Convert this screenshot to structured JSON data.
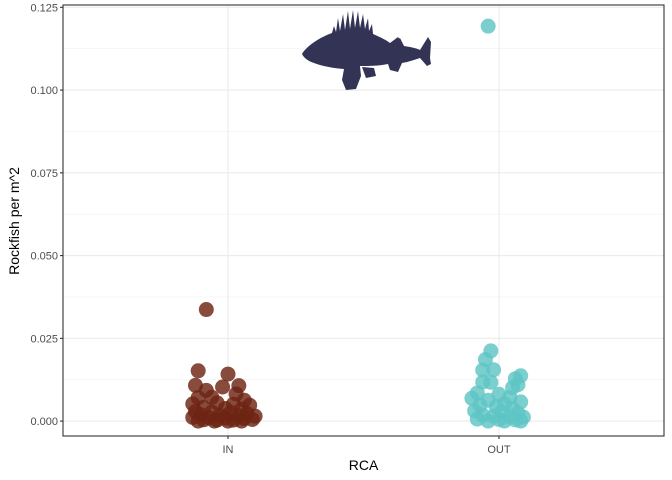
{
  "chart_data": {
    "type": "scatter",
    "title": "",
    "xlabel": "RCA",
    "ylabel": "Rockfish per m^2",
    "categories": [
      "IN",
      "OUT"
    ],
    "ylim": [
      -0.0045,
      0.1257
    ],
    "yticks": [
      0.0,
      0.025,
      0.05,
      0.075,
      0.1,
      0.125
    ],
    "ytick_labels": [
      "0.000",
      "0.025",
      "0.050",
      "0.075",
      "0.100",
      "0.125"
    ],
    "grid": true,
    "legend": "none",
    "series": [
      {
        "category": "IN",
        "color": "#6e2414",
        "points": [
          {
            "x": -0.08,
            "y": 0.0337
          },
          {
            "x": -0.11,
            "y": 0.0152
          },
          {
            "x": 0.0,
            "y": 0.0142
          },
          {
            "x": -0.12,
            "y": 0.0108
          },
          {
            "x": -0.02,
            "y": 0.0103
          },
          {
            "x": 0.04,
            "y": 0.0107
          },
          {
            "x": -0.08,
            "y": 0.0093
          },
          {
            "x": 0.03,
            "y": 0.0082
          },
          {
            "x": -0.11,
            "y": 0.0071
          },
          {
            "x": -0.06,
            "y": 0.0072
          },
          {
            "x": 0.06,
            "y": 0.0063
          },
          {
            "x": -0.13,
            "y": 0.0052
          },
          {
            "x": -0.04,
            "y": 0.0055
          },
          {
            "x": 0.02,
            "y": 0.0051
          },
          {
            "x": 0.08,
            "y": 0.0048
          },
          {
            "x": -0.09,
            "y": 0.0041
          },
          {
            "x": -0.01,
            "y": 0.0038
          },
          {
            "x": 0.05,
            "y": 0.0036
          },
          {
            "x": -0.12,
            "y": 0.0029
          },
          {
            "x": -0.06,
            "y": 0.0027
          },
          {
            "x": 0.01,
            "y": 0.0026
          },
          {
            "x": 0.07,
            "y": 0.0023
          },
          {
            "x": -0.1,
            "y": 0.0019
          },
          {
            "x": -0.03,
            "y": 0.0017
          },
          {
            "x": 0.04,
            "y": 0.0016
          },
          {
            "x": 0.1,
            "y": 0.0015
          },
          {
            "x": -0.13,
            "y": 0.0011
          },
          {
            "x": -0.07,
            "y": 0.001
          },
          {
            "x": -0.01,
            "y": 0.0009
          },
          {
            "x": 0.06,
            "y": 0.0008
          },
          {
            "x": -0.09,
            "y": 0.0004
          },
          {
            "x": -0.04,
            "y": 0.0003
          },
          {
            "x": 0.02,
            "y": 0.0003
          },
          {
            "x": 0.09,
            "y": 0.0005
          },
          {
            "x": -0.11,
            "y": 0.0
          },
          {
            "x": -0.05,
            "y": 0.0
          },
          {
            "x": 0.0,
            "y": 0.0
          },
          {
            "x": 0.05,
            "y": 0.0
          }
        ]
      },
      {
        "category": "OUT",
        "color": "#5ec4c4",
        "points": [
          {
            "x": -0.04,
            "y": 0.1193
          },
          {
            "x": -0.03,
            "y": 0.0212
          },
          {
            "x": -0.05,
            "y": 0.0186
          },
          {
            "x": -0.02,
            "y": 0.0155
          },
          {
            "x": -0.06,
            "y": 0.0154
          },
          {
            "x": 0.08,
            "y": 0.0137
          },
          {
            "x": 0.06,
            "y": 0.0128
          },
          {
            "x": -0.06,
            "y": 0.0118
          },
          {
            "x": -0.03,
            "y": 0.0117
          },
          {
            "x": 0.07,
            "y": 0.011
          },
          {
            "x": 0.05,
            "y": 0.0101
          },
          {
            "x": -0.08,
            "y": 0.0085
          },
          {
            "x": 0.0,
            "y": 0.0081
          },
          {
            "x": 0.04,
            "y": 0.0072
          },
          {
            "x": -0.1,
            "y": 0.0069
          },
          {
            "x": -0.04,
            "y": 0.0063
          },
          {
            "x": 0.08,
            "y": 0.0058
          },
          {
            "x": 0.02,
            "y": 0.0052
          },
          {
            "x": -0.07,
            "y": 0.0048
          },
          {
            "x": -0.01,
            "y": 0.0044
          },
          {
            "x": 0.05,
            "y": 0.0038
          },
          {
            "x": -0.09,
            "y": 0.0031
          },
          {
            "x": 0.01,
            "y": 0.0028
          },
          {
            "x": 0.07,
            "y": 0.0024
          },
          {
            "x": -0.06,
            "y": 0.0018
          },
          {
            "x": -0.02,
            "y": 0.0015
          },
          {
            "x": 0.04,
            "y": 0.0013
          },
          {
            "x": 0.09,
            "y": 0.0012
          },
          {
            "x": -0.08,
            "y": 0.0006
          },
          {
            "x": 0.0,
            "y": 0.0005
          },
          {
            "x": 0.06,
            "y": 0.0004
          },
          {
            "x": -0.04,
            "y": 0.0
          },
          {
            "x": 0.02,
            "y": 0.0
          },
          {
            "x": 0.08,
            "y": 0.0
          }
        ]
      }
    ],
    "annotation": {
      "type": "fish-silhouette-icon",
      "color": "#333455"
    }
  }
}
